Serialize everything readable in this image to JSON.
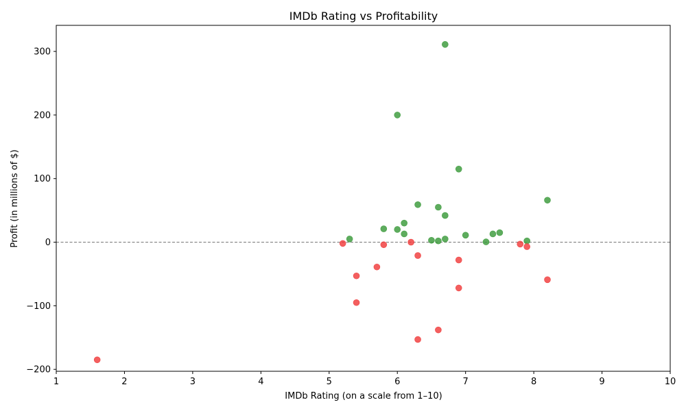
{
  "chart_data": {
    "type": "scatter",
    "title": "IMDb Rating vs Profitability",
    "xlabel": "IMDb Rating (on a scale from 1–10)",
    "ylabel": "Profit (in millions of $)",
    "xlim": [
      1,
      10
    ],
    "ylim": [
      -203,
      341
    ],
    "xticks": [
      1,
      2,
      3,
      4,
      5,
      6,
      7,
      8,
      9,
      10
    ],
    "yticks": [
      -200,
      -100,
      0,
      100,
      200,
      300
    ],
    "ytick_labels": [
      "−200",
      "−100",
      "0",
      "100",
      "200",
      "300"
    ],
    "reference_line": {
      "y": 0,
      "style": "dashed",
      "color": "#808080"
    },
    "grid": false,
    "legend": "none",
    "colors": {
      "profit": "#3a9a3a",
      "loss": "#f03c3c"
    },
    "points": [
      {
        "x": 6.7,
        "y": 311,
        "group": "profit"
      },
      {
        "x": 6.0,
        "y": 200,
        "group": "profit"
      },
      {
        "x": 6.9,
        "y": 115,
        "group": "profit"
      },
      {
        "x": 8.2,
        "y": 66,
        "group": "profit"
      },
      {
        "x": 6.3,
        "y": 59,
        "group": "profit"
      },
      {
        "x": 6.6,
        "y": 55,
        "group": "profit"
      },
      {
        "x": 6.7,
        "y": 42,
        "group": "profit"
      },
      {
        "x": 6.1,
        "y": 30,
        "group": "profit"
      },
      {
        "x": 5.8,
        "y": 21,
        "group": "profit"
      },
      {
        "x": 6.0,
        "y": 20,
        "group": "profit"
      },
      {
        "x": 7.5,
        "y": 15,
        "group": "profit"
      },
      {
        "x": 6.1,
        "y": 13,
        "group": "profit"
      },
      {
        "x": 7.4,
        "y": 13,
        "group": "profit"
      },
      {
        "x": 7.0,
        "y": 11,
        "group": "profit"
      },
      {
        "x": 5.3,
        "y": 5,
        "group": "profit"
      },
      {
        "x": 6.7,
        "y": 5,
        "group": "profit"
      },
      {
        "x": 6.5,
        "y": 3,
        "group": "profit"
      },
      {
        "x": 6.6,
        "y": 2,
        "group": "profit"
      },
      {
        "x": 7.9,
        "y": 2,
        "group": "profit"
      },
      {
        "x": 7.3,
        "y": 0.5,
        "group": "profit"
      },
      {
        "x": 6.2,
        "y": 0,
        "group": "loss"
      },
      {
        "x": 5.2,
        "y": -2,
        "group": "loss"
      },
      {
        "x": 7.8,
        "y": -3,
        "group": "loss"
      },
      {
        "x": 5.8,
        "y": -4,
        "group": "loss"
      },
      {
        "x": 7.9,
        "y": -7,
        "group": "loss"
      },
      {
        "x": 6.3,
        "y": -21,
        "group": "loss"
      },
      {
        "x": 6.9,
        "y": -28,
        "group": "loss"
      },
      {
        "x": 5.7,
        "y": -39,
        "group": "loss"
      },
      {
        "x": 5.4,
        "y": -53,
        "group": "loss"
      },
      {
        "x": 8.2,
        "y": -59,
        "group": "loss"
      },
      {
        "x": 6.9,
        "y": -72,
        "group": "loss"
      },
      {
        "x": 5.4,
        "y": -95,
        "group": "loss"
      },
      {
        "x": 6.6,
        "y": -138,
        "group": "loss"
      },
      {
        "x": 6.3,
        "y": -153,
        "group": "loss"
      },
      {
        "x": 1.6,
        "y": -185,
        "group": "loss"
      }
    ]
  }
}
